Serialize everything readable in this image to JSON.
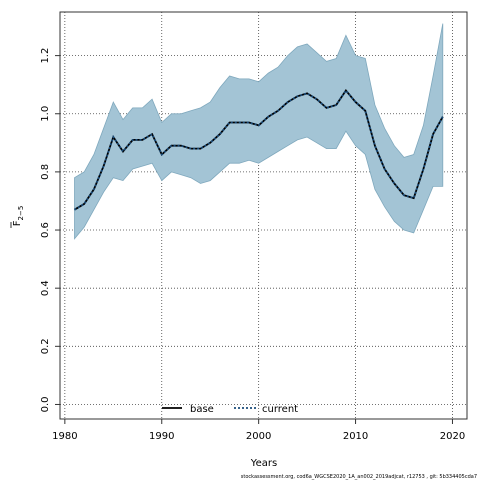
{
  "chart_data": {
    "type": "area",
    "xlabel": "Years",
    "ylabel_main": "F",
    "ylabel_sub": "2−5",
    "xlim": [
      1979.5,
      2021.5
    ],
    "ylim": [
      -0.05,
      1.35
    ],
    "xticks": [
      1980,
      1990,
      2000,
      2010,
      2020
    ],
    "yticks": [
      0.0,
      0.2,
      0.4,
      0.6,
      0.8,
      1.0,
      1.2
    ],
    "ytick_labels": [
      "0.0",
      "0.2",
      "0.4",
      "0.6",
      "0.8",
      "1.0",
      "1.2"
    ],
    "grid": true,
    "x": [
      1981,
      1982,
      1983,
      1984,
      1985,
      1986,
      1987,
      1988,
      1989,
      1990,
      1991,
      1992,
      1993,
      1994,
      1995,
      1996,
      1997,
      1998,
      1999,
      2000,
      2001,
      2002,
      2003,
      2004,
      2005,
      2006,
      2007,
      2008,
      2009,
      2010,
      2011,
      2012,
      2013,
      2014,
      2015,
      2016,
      2017,
      2018,
      2019
    ],
    "band": {
      "upper": [
        0.78,
        0.8,
        0.86,
        0.95,
        1.04,
        0.98,
        1.02,
        1.02,
        1.05,
        0.97,
        1.0,
        1.0,
        1.01,
        1.02,
        1.04,
        1.09,
        1.13,
        1.12,
        1.12,
        1.11,
        1.14,
        1.16,
        1.2,
        1.23,
        1.24,
        1.21,
        1.18,
        1.19,
        1.27,
        1.2,
        1.19,
        1.03,
        0.95,
        0.89,
        0.85,
        0.86,
        0.96,
        1.13,
        1.31
      ],
      "lower": [
        0.57,
        0.61,
        0.67,
        0.73,
        0.78,
        0.77,
        0.81,
        0.82,
        0.83,
        0.77,
        0.8,
        0.79,
        0.78,
        0.76,
        0.77,
        0.8,
        0.83,
        0.83,
        0.84,
        0.83,
        0.85,
        0.87,
        0.89,
        0.91,
        0.92,
        0.9,
        0.88,
        0.88,
        0.94,
        0.89,
        0.86,
        0.74,
        0.68,
        0.63,
        0.6,
        0.59,
        0.67,
        0.75,
        0.75
      ],
      "fill": "#a3c4d5",
      "edge": "#7fa8bd"
    },
    "series": [
      {
        "name": "base",
        "style": "solid",
        "color": "#000000",
        "values": [
          0.67,
          0.69,
          0.74,
          0.82,
          0.92,
          0.87,
          0.91,
          0.91,
          0.93,
          0.86,
          0.89,
          0.89,
          0.88,
          0.88,
          0.9,
          0.93,
          0.97,
          0.97,
          0.97,
          0.96,
          0.99,
          1.01,
          1.04,
          1.06,
          1.07,
          1.05,
          1.02,
          1.03,
          1.08,
          1.04,
          1.01,
          0.89,
          0.81,
          0.76,
          0.72,
          0.71,
          0.81,
          0.93,
          0.99
        ]
      },
      {
        "name": "current",
        "style": "dotted",
        "color": "#1a4c7a",
        "values": [
          0.67,
          0.69,
          0.74,
          0.82,
          0.92,
          0.87,
          0.91,
          0.91,
          0.93,
          0.86,
          0.89,
          0.89,
          0.88,
          0.88,
          0.9,
          0.93,
          0.97,
          0.97,
          0.97,
          0.96,
          0.99,
          1.01,
          1.04,
          1.06,
          1.07,
          1.05,
          1.02,
          1.03,
          1.08,
          1.04,
          1.01,
          0.89,
          0.81,
          0.76,
          0.72,
          0.71,
          0.81,
          0.93,
          0.99
        ]
      }
    ],
    "legend_placement": "bottom-center",
    "footer": "stockassessment.org, cod6a_WGCSE2020_1A_an002_2019adjcat, r12753 , git: 5b334405cda7"
  }
}
